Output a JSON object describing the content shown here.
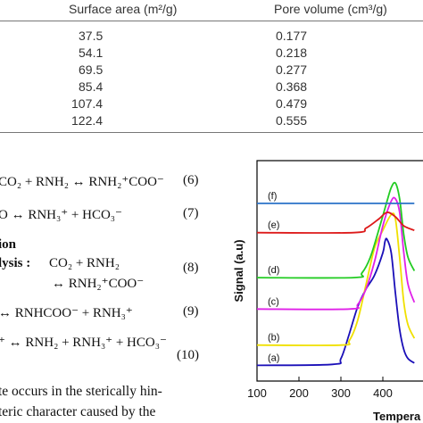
{
  "table": {
    "headers": [
      "Surface area (m²/g)",
      "Pore volume (cm³/g)"
    ],
    "rows": [
      [
        "37.5",
        "0.177"
      ],
      [
        "54.1",
        "0.218"
      ],
      [
        "69.5",
        "0.277"
      ],
      [
        "85.4",
        "0.368"
      ],
      [
        "107.4",
        "0.479"
      ],
      [
        "122.4",
        "0.555"
      ]
    ]
  },
  "equations": [
    {
      "text": "CO₂ + RNH₂ ↔ RNH₂⁺COO⁻",
      "number": "(6)"
    },
    {
      "text": "O ↔ RNH₃⁺ + HCO₃⁻",
      "number": "(7)"
    },
    {
      "heading1": "ion",
      "heading2": "lysis :",
      "text": "CO₂ + RNH₂",
      "number": "(8)",
      "cont": "↔ RNH₂⁺COO⁻"
    },
    {
      "text": "↔ RNHCOO⁻ + RNH₃⁺",
      "number": "(9)"
    },
    {
      "text": "⁺ ↔ RNH₂ + RNH₃⁺ + HCO₃⁻",
      "number": "(10)"
    }
  ],
  "body_text": [
    "te occurs in the sterically hin-",
    "teric character caused by the"
  ],
  "chart_data": {
    "type": "line",
    "xlabel": "Tempera",
    "ylabel": "Signal (a.u)",
    "xlim": [
      100,
      500
    ],
    "xticks": [
      100,
      200,
      300,
      400
    ],
    "series": [
      {
        "name": "(a)",
        "color": "#1a0fb8",
        "x": [
          100,
          280,
          300,
          320,
          340,
          360,
          380,
          400,
          405,
          410,
          420,
          430,
          440,
          450,
          460,
          475
        ],
        "y": [
          0.0,
          0.02,
          0.15,
          0.7,
          1.3,
          1.7,
          2.0,
          2.5,
          2.75,
          2.8,
          2.5,
          1.6,
          0.8,
          0.35,
          0.15,
          0.05
        ]
      },
      {
        "name": "(b)",
        "color": "#f0e000",
        "x": [
          100,
          300,
          320,
          340,
          360,
          380,
          400,
          420,
          430,
          440,
          450,
          460,
          475
        ],
        "y": [
          0.45,
          0.45,
          0.55,
          1.0,
          1.8,
          2.6,
          3.0,
          3.35,
          3.25,
          2.4,
          1.4,
          0.9,
          0.6
        ]
      },
      {
        "name": "(c)",
        "color": "#e020e8",
        "x": [
          100,
          320,
          340,
          360,
          380,
          400,
          420,
          430,
          440,
          450,
          460,
          475
        ],
        "y": [
          1.25,
          1.25,
          1.35,
          1.7,
          2.3,
          3.1,
          3.65,
          3.7,
          3.4,
          2.5,
          1.8,
          1.4
        ]
      },
      {
        "name": "(d)",
        "color": "#22cc22",
        "x": [
          100,
          330,
          350,
          370,
          390,
          410,
          420,
          430,
          440,
          450,
          460,
          475
        ],
        "y": [
          1.95,
          1.95,
          2.05,
          2.4,
          3.0,
          3.65,
          3.95,
          4.05,
          3.7,
          2.9,
          2.4,
          2.1
        ]
      },
      {
        "name": "(e)",
        "color": "#dd1a1a",
        "x": [
          100,
          330,
          360,
          390,
          410,
          430,
          450,
          475
        ],
        "y": [
          2.95,
          2.95,
          3.05,
          3.25,
          3.4,
          3.3,
          3.1,
          3.0
        ]
      },
      {
        "name": "(f)",
        "color": "#2a72c8",
        "x": [
          100,
          475
        ],
        "y": [
          3.6,
          3.6
        ]
      }
    ]
  }
}
